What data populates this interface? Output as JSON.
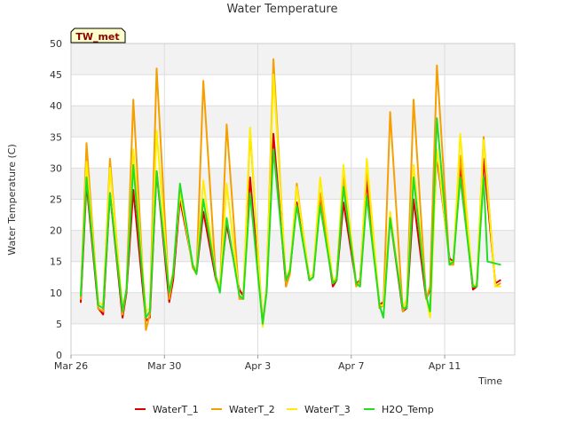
{
  "chart_data": {
    "type": "line",
    "title": "Water Temperature",
    "xlabel": "Time",
    "ylabel": "Water Temperature (C)",
    "station_label": "TW_met",
    "ylim": [
      0,
      50
    ],
    "yticks": [
      0,
      5,
      10,
      15,
      20,
      25,
      30,
      35,
      40,
      45,
      50
    ],
    "xlim": [
      "2024-03-26",
      "2024-04-14"
    ],
    "xticks": [
      {
        "date": "2024-03-26",
        "label": "Mar 26"
      },
      {
        "date": "2024-03-30",
        "label": "Mar 30"
      },
      {
        "date": "2024-04-03",
        "label": "Apr 3"
      },
      {
        "date": "2024-04-07",
        "label": "Apr 7"
      },
      {
        "date": "2024-04-11",
        "label": "Apr 11"
      }
    ],
    "grid": true,
    "legend_position": "bottom",
    "series": [
      {
        "name": "WaterT_1",
        "color": "#dd0000",
        "x": [
          "2024-03-26T10:00",
          "2024-03-26T16:00",
          "2024-03-27T04:00",
          "2024-03-27T09:00",
          "2024-03-27T16:00",
          "2024-03-28T05:00",
          "2024-03-28T09:00",
          "2024-03-28T16:00",
          "2024-03-29T05:00",
          "2024-03-29T09:00",
          "2024-03-29T16:00",
          "2024-03-30T05:00",
          "2024-03-30T09:00",
          "2024-03-30T16:00",
          "2024-03-31T05:00",
          "2024-03-31T09:00",
          "2024-03-31T16:00",
          "2024-04-01T05:00",
          "2024-04-01T09:00",
          "2024-04-01T16:00",
          "2024-04-02T05:00",
          "2024-04-02T09:00",
          "2024-04-02T16:00",
          "2024-04-03T05:00",
          "2024-04-03T09:00",
          "2024-04-03T16:00",
          "2024-04-04T05:00",
          "2024-04-04T09:00",
          "2024-04-04T16:00",
          "2024-04-05T05:00",
          "2024-04-05T09:00",
          "2024-04-05T16:00",
          "2024-04-06T05:00",
          "2024-04-06T09:00",
          "2024-04-06T16:00",
          "2024-04-07T05:00",
          "2024-04-07T09:00",
          "2024-04-07T16:00",
          "2024-04-08T05:00",
          "2024-04-08T09:00",
          "2024-04-08T16:00",
          "2024-04-09T05:00",
          "2024-04-09T09:00",
          "2024-04-09T16:00",
          "2024-04-10T05:00",
          "2024-04-10T09:00",
          "2024-04-10T16:00",
          "2024-04-11T05:00",
          "2024-04-11T09:00",
          "2024-04-11T16:00",
          "2024-04-12T05:00",
          "2024-04-12T09:00",
          "2024-04-12T16:00",
          "2024-04-13T04:00",
          "2024-04-13T09:00"
        ],
        "y": [
          8.5,
          27.5,
          7.5,
          6.5,
          26.0,
          6.0,
          10.0,
          26.5,
          5.5,
          6.0,
          29.5,
          8.5,
          12.0,
          25.0,
          14.5,
          13.0,
          23.0,
          12.0,
          11.0,
          21.0,
          10.5,
          9.5,
          28.5,
          5.0,
          10.5,
          35.5,
          11.0,
          13.5,
          24.5,
          12.0,
          12.5,
          25.5,
          11.0,
          12.0,
          24.5,
          11.5,
          12.0,
          28.0,
          8.0,
          8.5,
          22.0,
          7.0,
          7.5,
          25.0,
          9.0,
          10.5,
          32.0,
          15.5,
          15.0,
          30.5,
          10.5,
          11.0,
          31.5,
          11.5,
          12.0
        ]
      },
      {
        "name": "WaterT_2",
        "color": "#f5a000",
        "x": [
          "2024-03-26T10:00",
          "2024-03-26T16:00",
          "2024-03-27T04:00",
          "2024-03-27T09:00",
          "2024-03-27T16:00",
          "2024-03-28T05:00",
          "2024-03-28T09:00",
          "2024-03-28T16:00",
          "2024-03-29T05:00",
          "2024-03-29T09:00",
          "2024-03-29T16:00",
          "2024-03-30T05:00",
          "2024-03-30T09:00",
          "2024-03-30T16:00",
          "2024-03-31T05:00",
          "2024-03-31T09:00",
          "2024-03-31T16:00",
          "2024-04-01T05:00",
          "2024-04-01T09:00",
          "2024-04-01T16:00",
          "2024-04-02T05:00",
          "2024-04-02T09:00",
          "2024-04-02T16:00",
          "2024-04-03T05:00",
          "2024-04-03T09:00",
          "2024-04-03T16:00",
          "2024-04-04T05:00",
          "2024-04-04T09:00",
          "2024-04-04T16:00",
          "2024-04-05T05:00",
          "2024-04-05T09:00",
          "2024-04-05T16:00",
          "2024-04-06T05:00",
          "2024-04-06T09:00",
          "2024-04-06T16:00",
          "2024-04-07T05:00",
          "2024-04-07T09:00",
          "2024-04-07T16:00",
          "2024-04-08T05:00",
          "2024-04-08T09:00",
          "2024-04-08T16:00",
          "2024-04-09T05:00",
          "2024-04-09T09:00",
          "2024-04-09T16:00",
          "2024-04-10T05:00",
          "2024-04-10T09:00",
          "2024-04-10T16:00",
          "2024-04-11T05:00",
          "2024-04-11T09:00",
          "2024-04-11T16:00",
          "2024-04-12T05:00",
          "2024-04-12T09:00",
          "2024-04-12T16:00",
          "2024-04-13T04:00",
          "2024-04-13T09:00"
        ],
        "y": [
          9.0,
          34.0,
          7.5,
          7.0,
          31.5,
          6.5,
          10.5,
          41.0,
          4.0,
          6.5,
          46.0,
          9.0,
          13.0,
          27.0,
          14.0,
          13.0,
          44.0,
          12.0,
          10.5,
          37.0,
          9.0,
          9.0,
          36.0,
          5.0,
          11.0,
          47.5,
          11.0,
          13.0,
          27.5,
          12.0,
          12.5,
          26.0,
          11.5,
          12.5,
          29.0,
          11.0,
          12.0,
          30.0,
          7.5,
          8.0,
          39.0,
          7.0,
          8.0,
          41.0,
          9.0,
          11.0,
          46.5,
          14.5,
          14.5,
          32.0,
          11.0,
          11.0,
          35.0,
          11.0,
          11.5
        ]
      },
      {
        "name": "WaterT_3",
        "color": "#ffee00",
        "x": [
          "2024-03-26T10:00",
          "2024-03-26T16:00",
          "2024-03-27T04:00",
          "2024-03-27T09:00",
          "2024-03-27T16:00",
          "2024-03-28T05:00",
          "2024-03-28T09:00",
          "2024-03-28T16:00",
          "2024-03-29T05:00",
          "2024-03-29T09:00",
          "2024-03-29T16:00",
          "2024-03-30T05:00",
          "2024-03-30T09:00",
          "2024-03-30T16:00",
          "2024-03-31T05:00",
          "2024-03-31T09:00",
          "2024-03-31T16:00",
          "2024-04-01T05:00",
          "2024-04-01T09:00",
          "2024-04-01T16:00",
          "2024-04-02T05:00",
          "2024-04-02T09:00",
          "2024-04-02T16:00",
          "2024-04-03T05:00",
          "2024-04-03T09:00",
          "2024-04-03T16:00",
          "2024-04-04T05:00",
          "2024-04-04T09:00",
          "2024-04-04T16:00",
          "2024-04-05T05:00",
          "2024-04-05T09:00",
          "2024-04-05T16:00",
          "2024-04-06T05:00",
          "2024-04-06T09:00",
          "2024-04-06T16:00",
          "2024-04-07T05:00",
          "2024-04-07T09:00",
          "2024-04-07T16:00",
          "2024-04-08T05:00",
          "2024-04-08T09:00",
          "2024-04-08T16:00",
          "2024-04-09T05:00",
          "2024-04-09T09:00",
          "2024-04-09T16:00",
          "2024-04-10T05:00",
          "2024-04-10T09:00",
          "2024-04-10T16:00",
          "2024-04-11T05:00",
          "2024-04-11T09:00",
          "2024-04-11T16:00",
          "2024-04-12T05:00",
          "2024-04-12T09:00",
          "2024-04-12T16:00",
          "2024-04-13T04:00",
          "2024-04-13T09:00"
        ],
        "y": [
          9.5,
          31.0,
          8.5,
          8.0,
          30.0,
          7.5,
          10.5,
          33.0,
          7.0,
          7.5,
          36.0,
          10.0,
          13.5,
          26.0,
          14.5,
          13.5,
          28.0,
          12.5,
          11.0,
          27.5,
          9.5,
          9.0,
          36.5,
          4.5,
          11.0,
          45.0,
          12.0,
          14.0,
          27.0,
          12.5,
          13.0,
          28.5,
          12.0,
          12.5,
          30.5,
          11.5,
          11.0,
          31.5,
          8.0,
          8.0,
          23.0,
          7.5,
          9.0,
          30.5,
          9.5,
          6.0,
          33.0,
          15.0,
          15.0,
          35.5,
          11.0,
          11.5,
          34.5,
          11.0,
          11.0
        ]
      },
      {
        "name": "H2O_Temp",
        "color": "#22dd22",
        "x": [
          "2024-03-26T10:00",
          "2024-03-26T16:00",
          "2024-03-27T04:00",
          "2024-03-27T09:00",
          "2024-03-27T16:00",
          "2024-03-28T05:00",
          "2024-03-28T09:00",
          "2024-03-28T16:00",
          "2024-03-29T05:00",
          "2024-03-29T09:00",
          "2024-03-29T16:00",
          "2024-03-30T05:00",
          "2024-03-30T09:00",
          "2024-03-30T16:00",
          "2024-03-31T05:00",
          "2024-03-31T09:00",
          "2024-03-31T16:00",
          "2024-04-01T05:00",
          "2024-04-01T09:00",
          "2024-04-01T16:00",
          "2024-04-02T05:00",
          "2024-04-02T09:00",
          "2024-04-02T16:00",
          "2024-04-03T05:00",
          "2024-04-03T09:00",
          "2024-04-03T16:00",
          "2024-04-04T05:00",
          "2024-04-04T09:00",
          "2024-04-04T16:00",
          "2024-04-05T05:00",
          "2024-04-05T09:00",
          "2024-04-05T16:00",
          "2024-04-06T05:00",
          "2024-04-06T09:00",
          "2024-04-06T16:00",
          "2024-04-07T05:00",
          "2024-04-07T09:00",
          "2024-04-07T16:00",
          "2024-04-08T05:00",
          "2024-04-08T09:00",
          "2024-04-08T16:00",
          "2024-04-09T05:00",
          "2024-04-09T09:00",
          "2024-04-09T16:00",
          "2024-04-10T05:00",
          "2024-04-10T09:00",
          "2024-04-10T16:00",
          "2024-04-11T05:00",
          "2024-04-11T09:00",
          "2024-04-11T16:00",
          "2024-04-12T05:00",
          "2024-04-12T09:00",
          "2024-04-12T16:00",
          "2024-04-12T20:00",
          "2024-04-13T09:00"
        ],
        "y": [
          9.5,
          28.5,
          8.0,
          7.5,
          26.0,
          7.0,
          10.5,
          30.5,
          6.0,
          7.0,
          29.5,
          10.0,
          13.0,
          27.5,
          14.5,
          13.0,
          25.0,
          12.5,
          10.0,
          22.0,
          9.5,
          9.0,
          26.0,
          5.0,
          10.0,
          33.0,
          12.0,
          13.5,
          24.0,
          12.0,
          12.5,
          24.0,
          11.5,
          12.0,
          27.0,
          11.5,
          11.0,
          25.5,
          8.0,
          6.0,
          22.0,
          7.5,
          7.5,
          28.5,
          9.5,
          7.0,
          38.0,
          14.5,
          15.0,
          28.5,
          11.0,
          11.0,
          28.5,
          15.0,
          14.5
        ]
      }
    ]
  }
}
